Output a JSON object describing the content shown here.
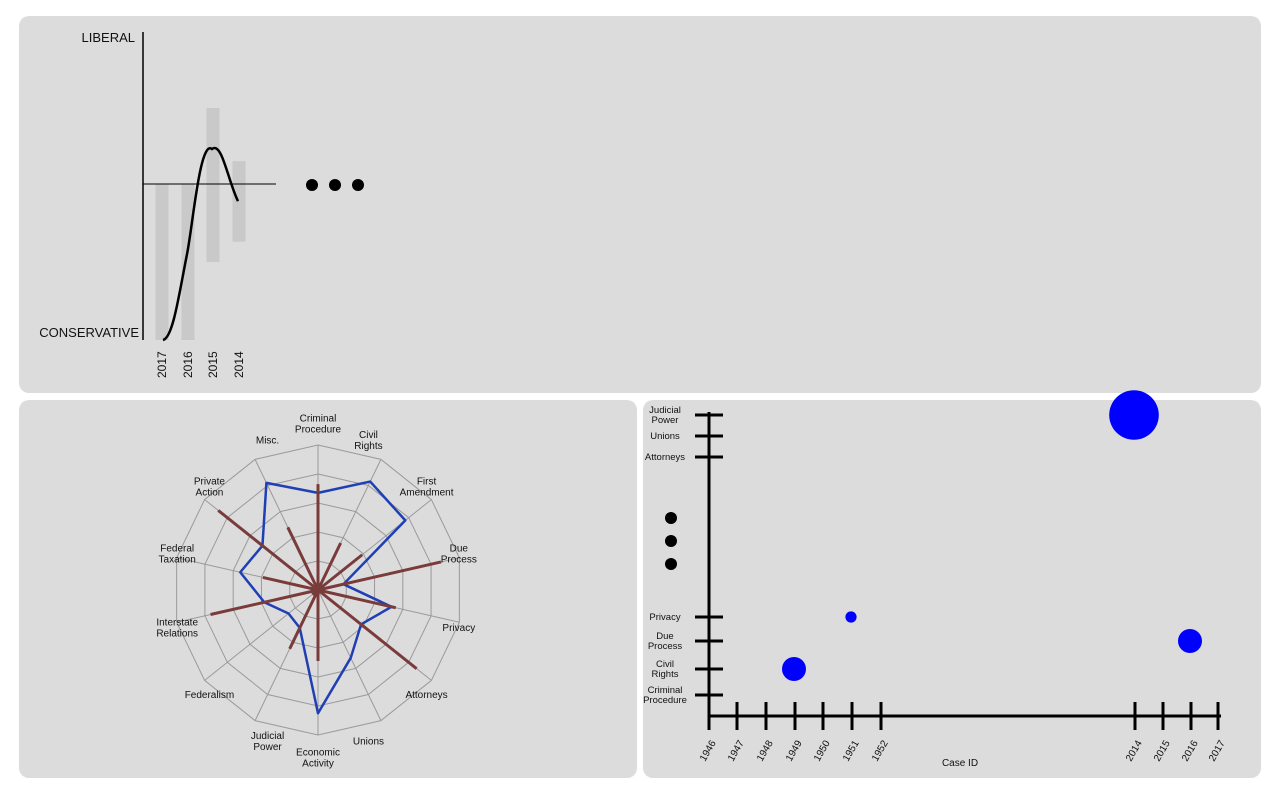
{
  "colors": {
    "panel_bg": "#dcdcdc",
    "bar": "#c9c9c9",
    "curve": "#000000",
    "radar_grid": "#9a9a9a",
    "radar_series_blue": "#1f3fb4",
    "radar_series_red": "#7a3b3b",
    "bubble": "#0000ff",
    "axis": "#000000"
  },
  "ellipsis_icon": "three-dots",
  "chart_data": [
    {
      "id": "ideology-timeline",
      "type": "bar",
      "ylabel_top": "LIBERAL",
      "ylabel_bottom": "CONSERVATIVE",
      "ylim": [
        -1,
        1
      ],
      "categories": [
        "2017",
        "2016",
        "2015",
        "2014"
      ],
      "bar_ranges": [
        [
          -1,
          0
        ],
        [
          -1,
          0
        ],
        [
          -0.5,
          0.5
        ],
        [
          -0.37,
          0.15
        ]
      ],
      "curve_values": [
        -1.0,
        -0.45,
        0.23,
        -0.11
      ],
      "truncated": true
    },
    {
      "id": "issue-radar",
      "type": "radar",
      "axes": [
        {
          "lines": [
            "Criminal",
            "Procedure"
          ]
        },
        {
          "lines": [
            "Civil",
            "Rights"
          ]
        },
        {
          "lines": [
            "First",
            "Amendment"
          ]
        },
        {
          "lines": [
            "Due",
            "Process"
          ]
        },
        {
          "lines": [
            "Privacy"
          ]
        },
        {
          "lines": [
            "Attorneys"
          ]
        },
        {
          "lines": [
            "Unions"
          ]
        },
        {
          "lines": [
            "Economic",
            "Activity"
          ]
        },
        {
          "lines": [
            "Judicial",
            "Power"
          ]
        },
        {
          "lines": [
            "Federalism"
          ]
        },
        {
          "lines": [
            "Interstate",
            "Relations"
          ]
        },
        {
          "lines": [
            "Federal",
            "Taxation"
          ]
        },
        {
          "lines": [
            "Private",
            "Action"
          ]
        },
        {
          "lines": [
            "Misc."
          ]
        }
      ],
      "rings": 5,
      "rmax": 1,
      "series": [
        {
          "color_key": "radar_series_blue",
          "style": "polygon",
          "values": [
            0.67,
            0.83,
            0.77,
            0.18,
            0.52,
            0.38,
            0.52,
            0.85,
            0.29,
            0.26,
            0.38,
            0.55,
            0.49,
            0.82
          ]
        },
        {
          "color_key": "radar_series_red",
          "style": "spokes",
          "values": [
            0.73,
            0.36,
            0.39,
            0.87,
            0.55,
            0.87,
            0.0,
            0.49,
            0.45,
            0.05,
            0.76,
            0.39,
            0.88,
            0.48
          ]
        }
      ]
    },
    {
      "id": "case-scatter",
      "type": "scatter",
      "xlabel": "Case ID",
      "x_ticks_left": [
        "1946",
        "1947",
        "1948",
        "1949",
        "1950",
        "1951",
        "1952"
      ],
      "x_ticks_right": [
        "2014",
        "2015",
        "2016",
        "2017"
      ],
      "y_ticks_bottom": [
        {
          "lines": [
            "Criminal",
            "Procedure"
          ]
        },
        {
          "lines": [
            "Civil",
            "Rights"
          ]
        },
        {
          "lines": [
            "Due",
            "Process"
          ]
        },
        {
          "lines": [
            "Privacy"
          ]
        }
      ],
      "y_ticks_top": [
        {
          "lines": [
            "Attorneys"
          ]
        },
        {
          "lines": [
            "Unions"
          ]
        },
        {
          "lines": [
            "Judicial",
            "Power"
          ]
        }
      ],
      "points": [
        {
          "x": "1949",
          "y": "Civil Rights",
          "size": 3
        },
        {
          "x": "1951",
          "y": "Privacy",
          "size": 1.4
        },
        {
          "x": "2016",
          "y": "Due Process",
          "size": 3
        },
        {
          "x": "2014",
          "y": "Judicial Power",
          "size": 6.2
        }
      ]
    }
  ]
}
